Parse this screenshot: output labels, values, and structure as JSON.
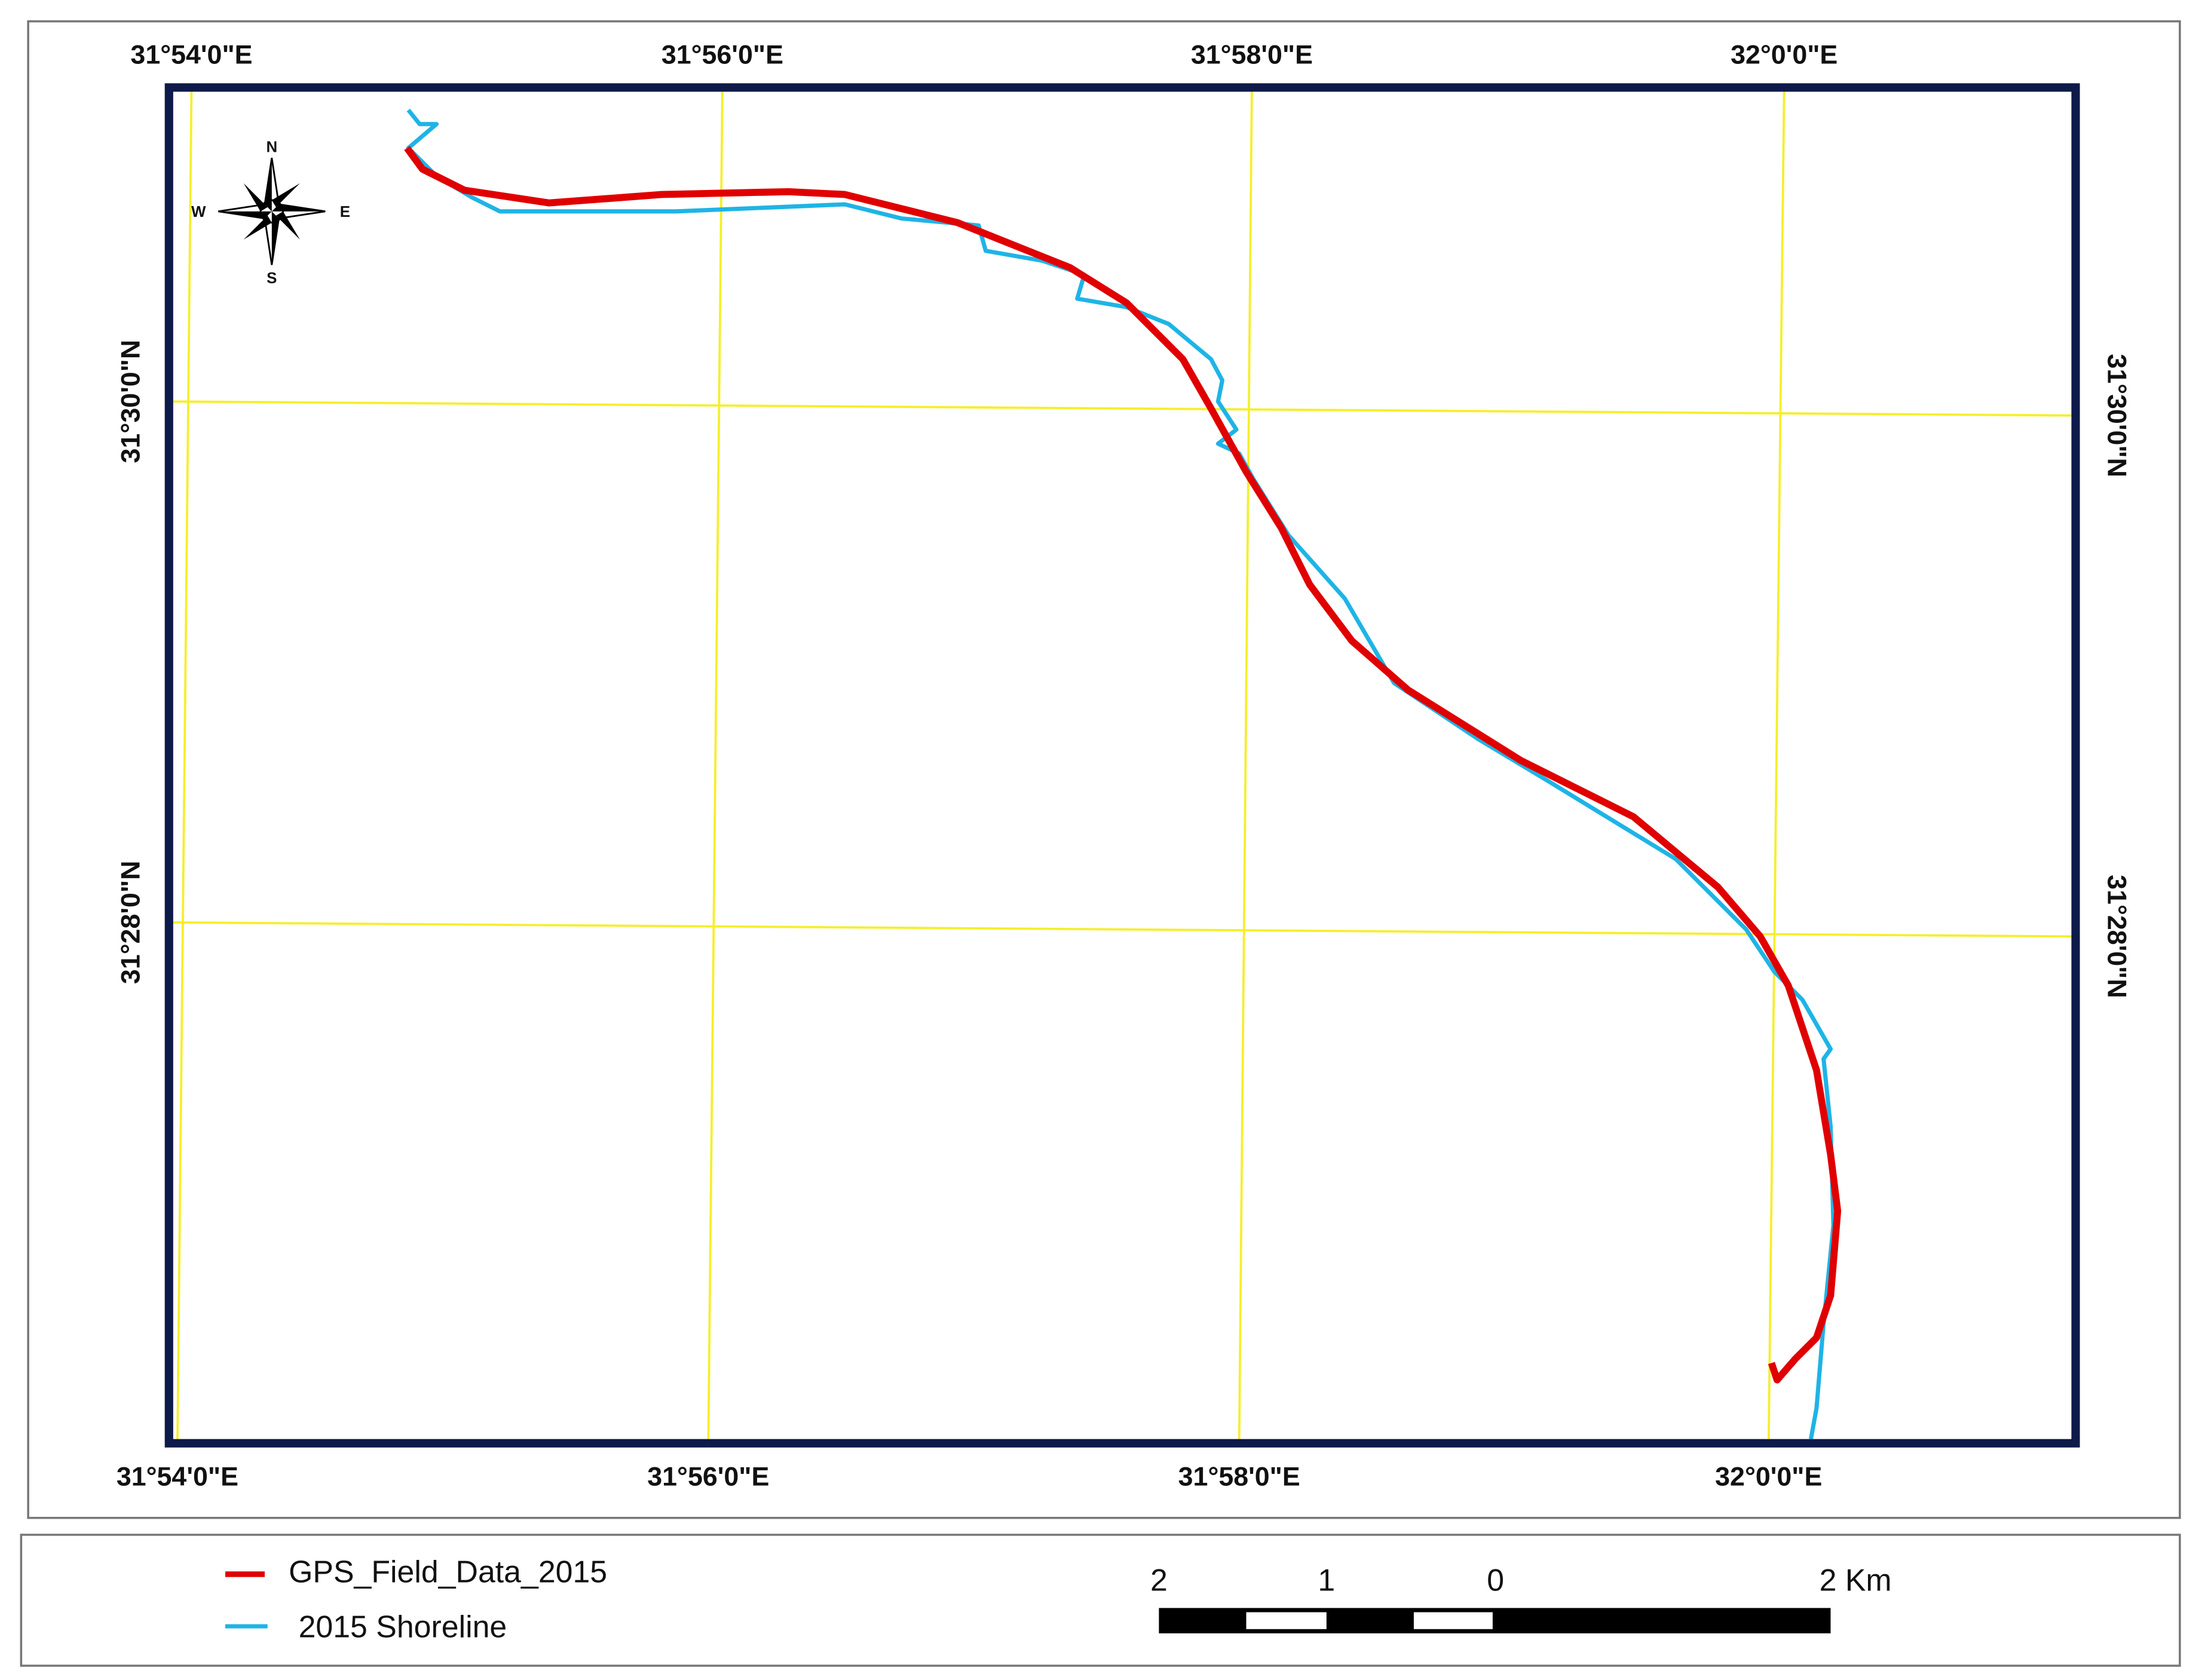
{
  "map": {
    "top_labels": [
      "31°54'0\"E",
      "31°56'0\"E",
      "31°58'0\"E",
      "32°0'0\"E"
    ],
    "bottom_labels": [
      "31°54'0\"E",
      "31°56'0\"E",
      "31°58'0\"E",
      "32°0'0\"E"
    ],
    "left_labels": [
      "31°30'0\"N",
      "31°28'0\"N"
    ],
    "right_labels": [
      "31°30'0\"N",
      "31°28'0\"N"
    ],
    "compass": {
      "n": "N",
      "e": "E",
      "s": "S",
      "w": "W"
    }
  },
  "legend": {
    "items": [
      {
        "label": "GPS_Field_Data_2015",
        "color": "#e00000"
      },
      {
        "label": "2015 Shoreline",
        "color": "#1eb4e6"
      }
    ]
  },
  "scale_bar": {
    "labels": [
      "2",
      "1",
      "0",
      "2 Km"
    ]
  }
}
